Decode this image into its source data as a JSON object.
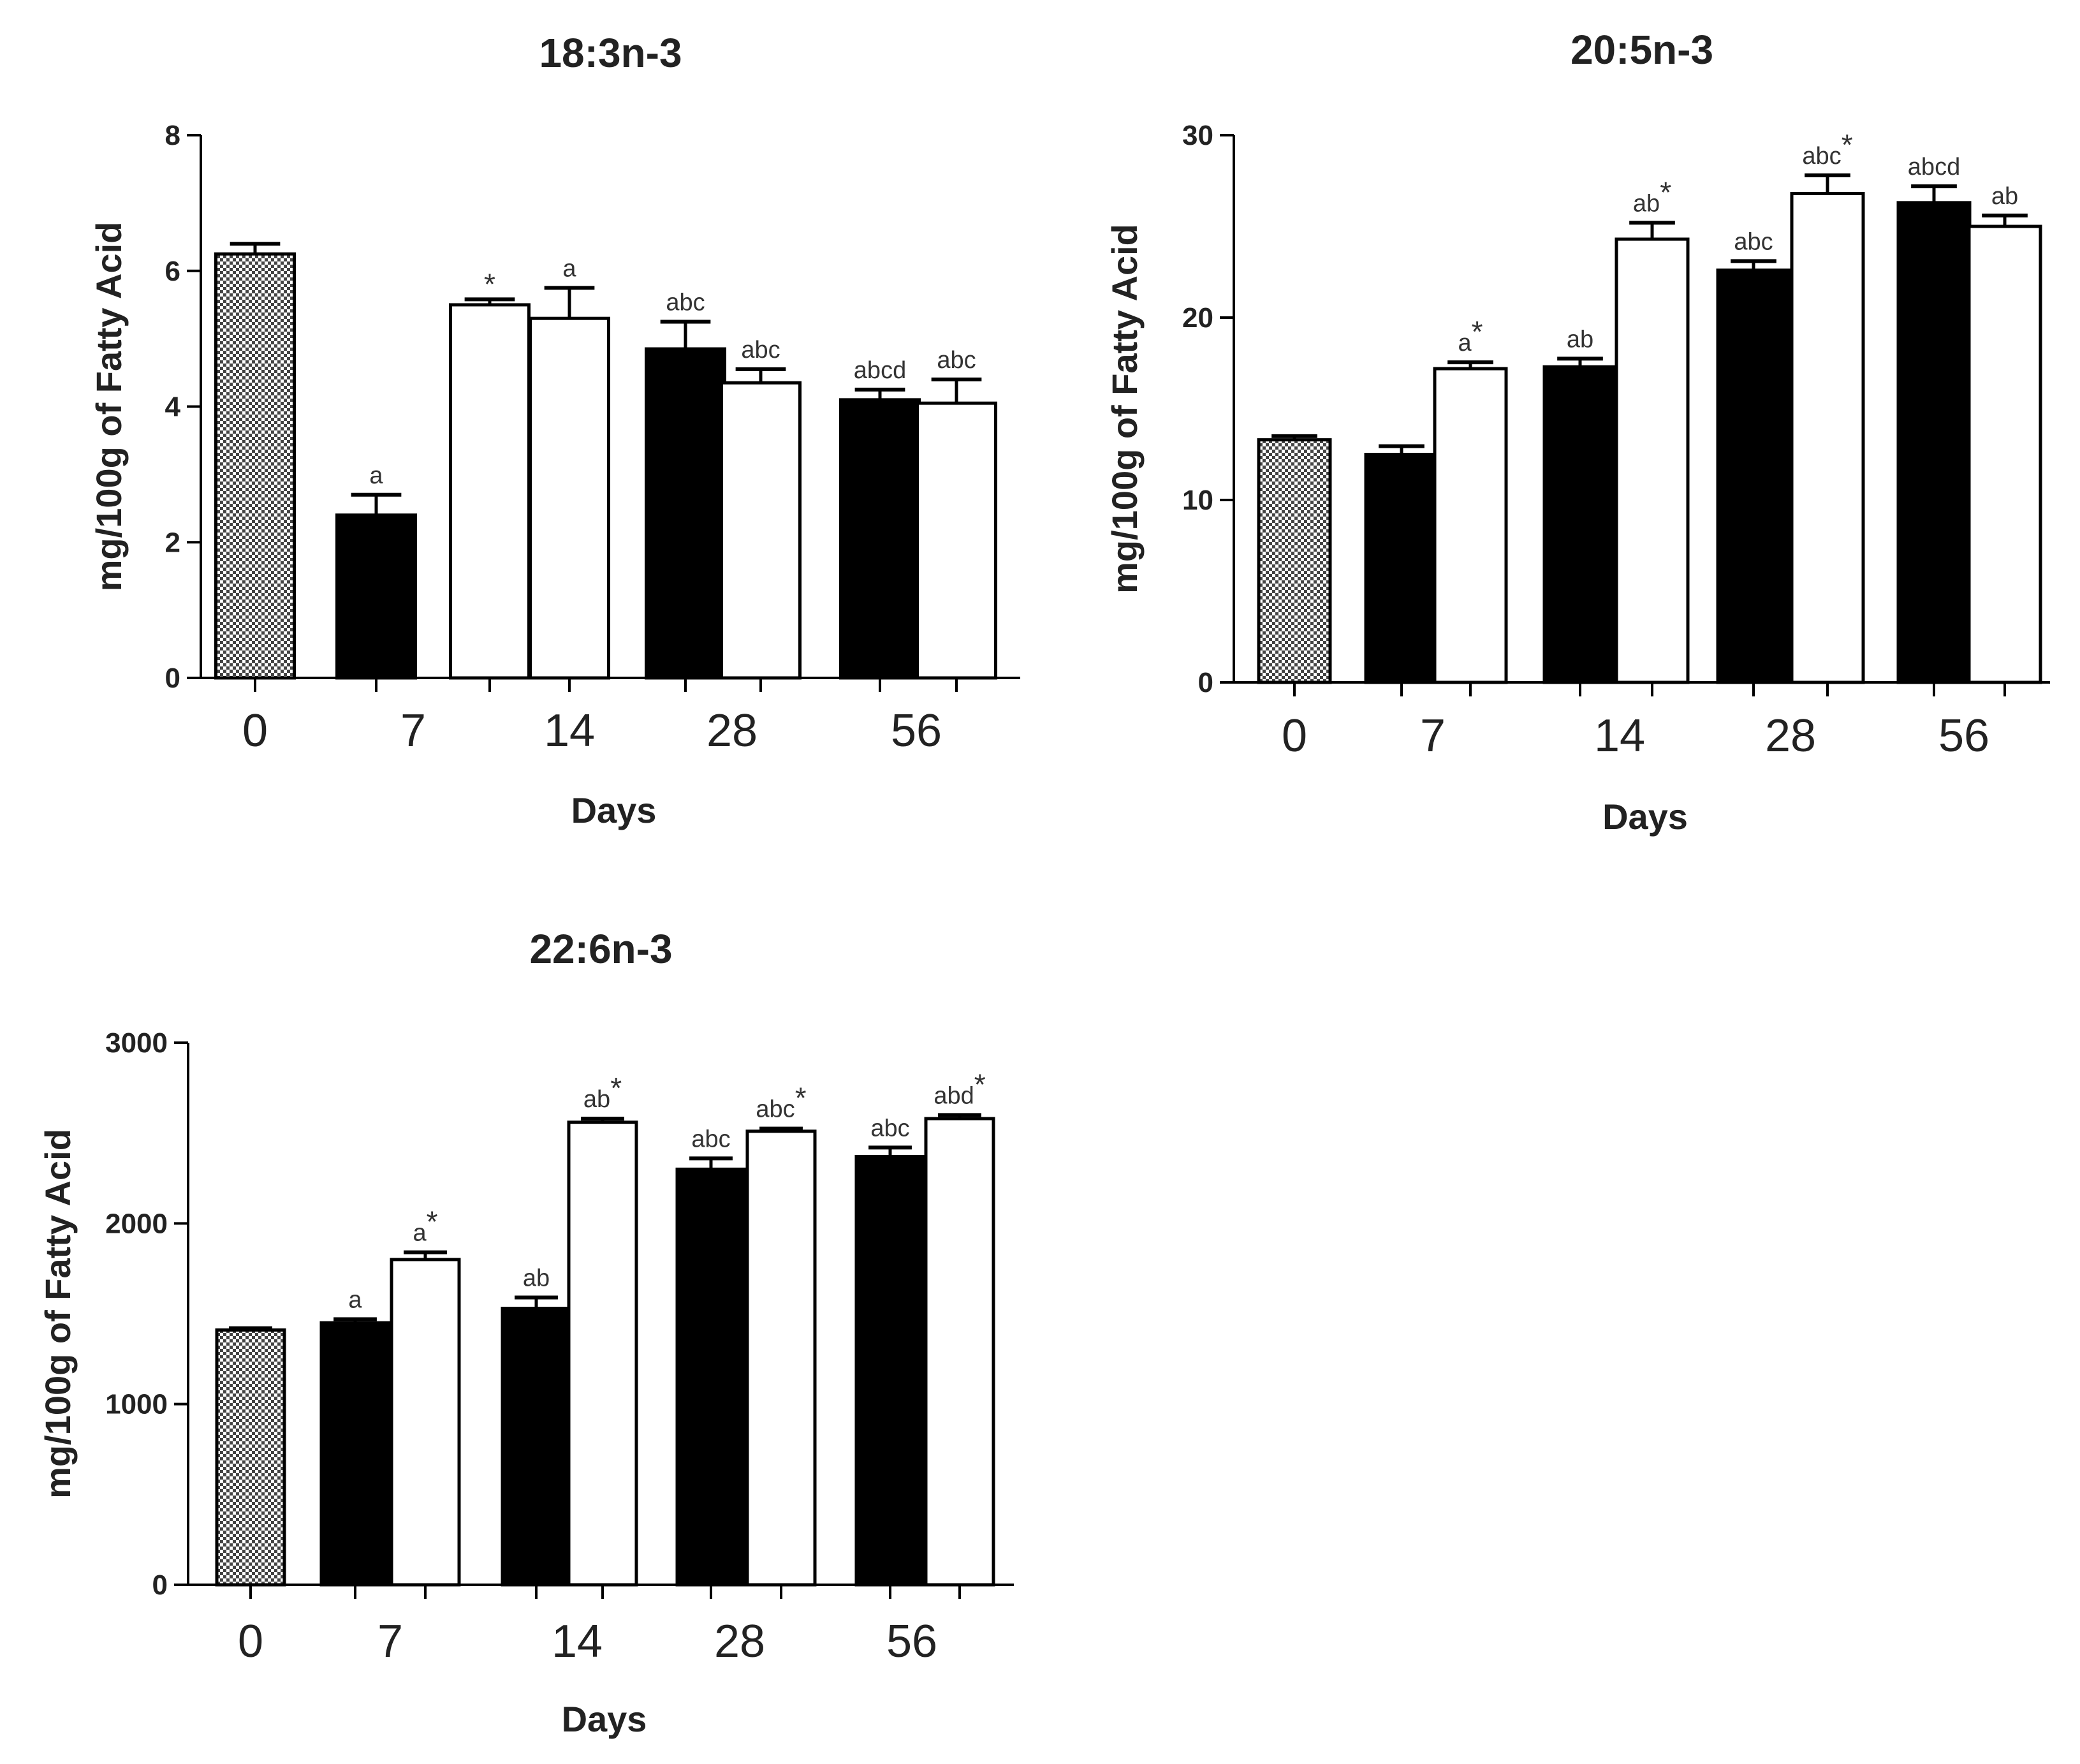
{
  "colors": {
    "baseline_pattern_dark": "#444444",
    "baseline_pattern_light": "#ffffff",
    "dark_bar": "#000000",
    "open_bar": "#ffffff",
    "axis": "#000000",
    "text": "#222222"
  },
  "chart_data": [
    {
      "type": "bar",
      "title": "18:3n-3",
      "xlabel": "Days",
      "ylabel": "mg/100g of Fatty Acid",
      "ylim": [
        0,
        8
      ],
      "yticks": [
        "0",
        "2",
        "4",
        "6",
        "8"
      ],
      "categories": [
        "0",
        "7",
        "14",
        "28",
        "56"
      ],
      "bars": [
        {
          "day": "0",
          "kind": "baseline",
          "value": 6.25,
          "err": 0.15,
          "label": ""
        },
        {
          "day": "7",
          "kind": "dark",
          "value": 2.4,
          "err": 0.3,
          "label": "a"
        },
        {
          "day": "7",
          "kind": "open",
          "value": 5.5,
          "err": 0.08,
          "label": "*"
        },
        {
          "day": "14",
          "kind": "open",
          "value": 5.3,
          "err": 0.45,
          "label": "a"
        },
        {
          "day": "28",
          "kind": "dark",
          "value": 4.85,
          "err": 0.4,
          "label": "abc"
        },
        {
          "day": "28",
          "kind": "open",
          "value": 4.35,
          "err": 0.2,
          "label": "abc"
        },
        {
          "day": "56",
          "kind": "dark",
          "value": 4.1,
          "err": 0.15,
          "label": "abcd"
        },
        {
          "day": "56",
          "kind": "open",
          "value": 4.05,
          "err": 0.35,
          "label": "abc"
        }
      ]
    },
    {
      "type": "bar",
      "title": "20:5n-3",
      "xlabel": "Days",
      "ylabel": "mg/100g of Fatty Acid",
      "ylim": [
        0,
        30
      ],
      "yticks": [
        "0",
        "10",
        "20",
        "30"
      ],
      "categories": [
        "0",
        "7",
        "14",
        "28",
        "56"
      ],
      "bars": [
        {
          "day": "0",
          "kind": "baseline",
          "value": 13.3,
          "err": 0.2,
          "label": ""
        },
        {
          "day": "7",
          "kind": "dark",
          "value": 12.5,
          "err": 0.45,
          "label": ""
        },
        {
          "day": "7",
          "kind": "open",
          "value": 17.2,
          "err": 0.35,
          "label": "a*"
        },
        {
          "day": "14",
          "kind": "dark",
          "value": 17.3,
          "err": 0.45,
          "label": "ab"
        },
        {
          "day": "14",
          "kind": "open",
          "value": 24.3,
          "err": 0.9,
          "label": "ab*"
        },
        {
          "day": "28",
          "kind": "dark",
          "value": 22.6,
          "err": 0.5,
          "label": "abc"
        },
        {
          "day": "28",
          "kind": "open",
          "value": 26.8,
          "err": 1.0,
          "label": "abc*"
        },
        {
          "day": "56",
          "kind": "dark",
          "value": 26.3,
          "err": 0.9,
          "label": "abcd"
        },
        {
          "day": "56",
          "kind": "open",
          "value": 25.0,
          "err": 0.6,
          "label": "ab"
        }
      ]
    },
    {
      "type": "bar",
      "title": "22:6n-3",
      "xlabel": "Days",
      "ylabel": "mg/100g of Fatty Acid",
      "ylim": [
        0,
        3000
      ],
      "yticks": [
        "0",
        "1000",
        "2000",
        "3000"
      ],
      "categories": [
        "0",
        "7",
        "14",
        "28",
        "56"
      ],
      "bars": [
        {
          "day": "0",
          "kind": "baseline",
          "value": 1410,
          "err": 10,
          "label": ""
        },
        {
          "day": "7",
          "kind": "dark",
          "value": 1450,
          "err": 20,
          "label": "a"
        },
        {
          "day": "7",
          "kind": "open",
          "value": 1800,
          "err": 40,
          "label": "a*"
        },
        {
          "day": "14",
          "kind": "dark",
          "value": 1530,
          "err": 60,
          "label": "ab"
        },
        {
          "day": "14",
          "kind": "open",
          "value": 2560,
          "err": 20,
          "label": "ab*"
        },
        {
          "day": "28",
          "kind": "dark",
          "value": 2300,
          "err": 60,
          "label": "abc"
        },
        {
          "day": "28",
          "kind": "open",
          "value": 2510,
          "err": 15,
          "label": "abc*"
        },
        {
          "day": "56",
          "kind": "dark",
          "value": 2370,
          "err": 50,
          "label": "abc"
        },
        {
          "day": "56",
          "kind": "open",
          "value": 2580,
          "err": 20,
          "label": "abd*"
        }
      ]
    }
  ]
}
